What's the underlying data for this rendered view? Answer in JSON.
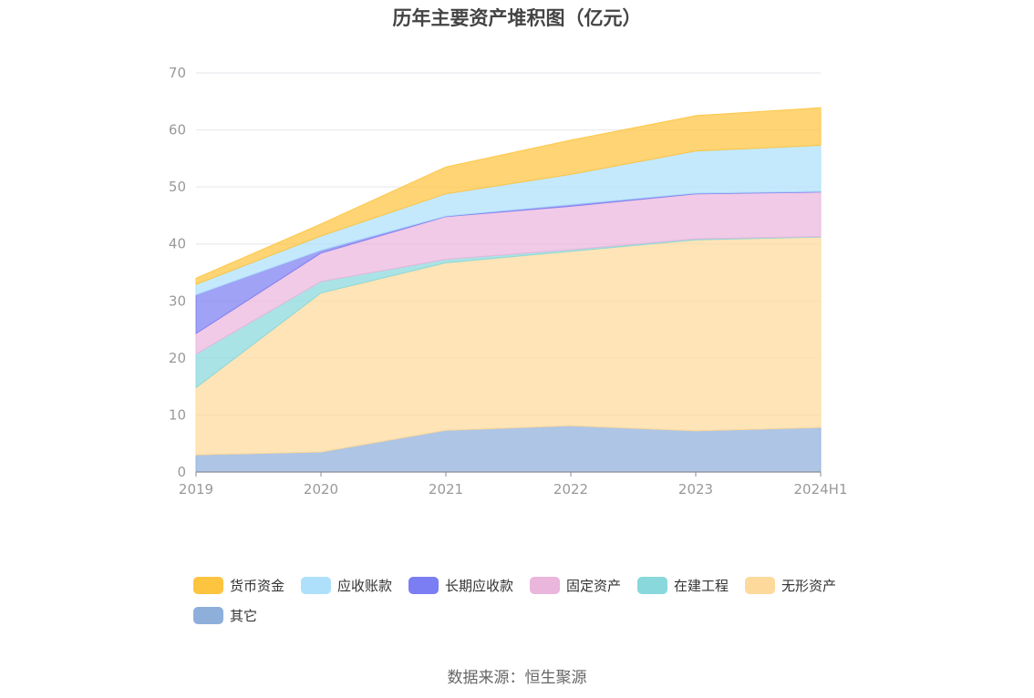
{
  "chart_data": {
    "type": "area",
    "stacked": true,
    "title": "历年主要资产堆积图（亿元）",
    "x": [
      "2019",
      "2020",
      "2021",
      "2022",
      "2023",
      "2024H1"
    ],
    "yticks": [
      "0",
      "10",
      "20",
      "30",
      "40",
      "50",
      "60",
      "70"
    ],
    "ylim": [
      0,
      70
    ],
    "grid": true,
    "legend_position": "bottom",
    "series": [
      {
        "name": "其它",
        "color": "#8fafdb",
        "values": [
          3.0,
          3.5,
          7.3,
          8.1,
          7.2,
          7.8
        ]
      },
      {
        "name": "无形资产",
        "color": "#fdd99b",
        "values": [
          11.8,
          27.9,
          29.4,
          30.6,
          33.5,
          33.4
        ]
      },
      {
        "name": "在建工程",
        "color": "#89d8dc",
        "values": [
          5.9,
          2.0,
          0.6,
          0.3,
          0.2,
          0.1
        ]
      },
      {
        "name": "固定资产",
        "color": "#eab6dc",
        "values": [
          3.6,
          5.0,
          7.5,
          7.6,
          7.9,
          7.8
        ]
      },
      {
        "name": "长期应收款",
        "color": "#7b7ef2",
        "values": [
          6.8,
          0.5,
          0.1,
          0.3,
          0.1,
          0.1
        ]
      },
      {
        "name": "应收账款",
        "color": "#aee0fb",
        "values": [
          1.8,
          2.5,
          3.9,
          5.3,
          7.4,
          8.1
        ]
      },
      {
        "name": "货币资金",
        "color": "#fdc43f",
        "values": [
          1.1,
          2.1,
          4.7,
          6.0,
          6.2,
          6.6
        ]
      }
    ]
  },
  "legend": [
    {
      "label": "货币资金",
      "color": "#fdc43f"
    },
    {
      "label": "应收账款",
      "color": "#aee0fb"
    },
    {
      "label": "长期应收款",
      "color": "#7b7ef2"
    },
    {
      "label": "固定资产",
      "color": "#eab6dc"
    },
    {
      "label": "在建工程",
      "color": "#89d8dc"
    },
    {
      "label": "无形资产",
      "color": "#fdd99b"
    },
    {
      "label": "其它",
      "color": "#8fafdb"
    }
  ],
  "source": "数据来源：恒生聚源"
}
